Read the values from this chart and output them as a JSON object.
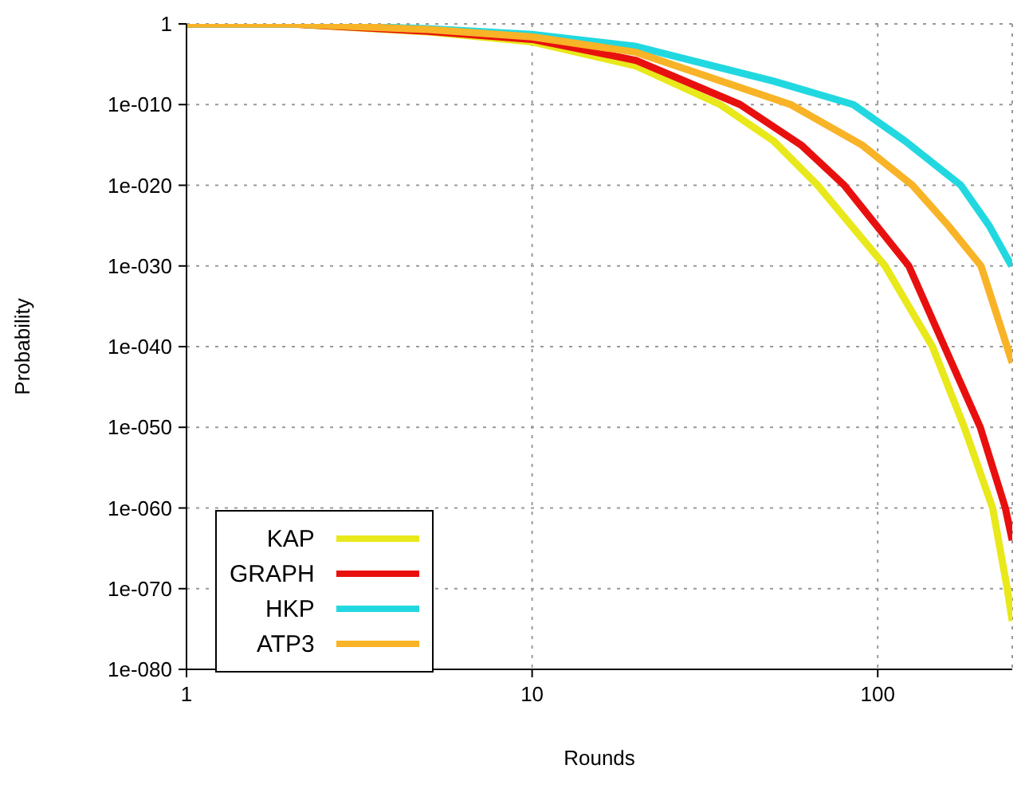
{
  "chart_data": {
    "type": "line",
    "xlabel": "Rounds",
    "ylabel": "Probability",
    "log": "xy",
    "grid": true,
    "legend": "bottom left",
    "line_style": "solid",
    "marker": "none",
    "xlim": [
      1,
      245
    ],
    "xticks": [
      1,
      10,
      100
    ],
    "ylim": [
      1e-80,
      1
    ],
    "yticks": [
      1,
      {
        "value": 1e-10,
        "label": "1e-010"
      },
      {
        "value": 1e-20,
        "label": "1e-020"
      },
      {
        "value": 1e-30,
        "label": "1e-030"
      },
      {
        "value": 1e-40,
        "label": "1e-040"
      },
      {
        "value": 1e-50,
        "label": "1e-050"
      },
      {
        "value": 1e-60,
        "label": "1e-060"
      },
      {
        "value": 1e-70,
        "label": "1e-070"
      },
      {
        "value": 1e-80,
        "label": "1e-080"
      }
    ],
    "series": [
      {
        "name": "KAP",
        "color": "#e8e81a",
        "x": [
          1,
          2,
          5,
          10,
          20,
          35,
          50,
          67,
          105,
          144,
          178,
          215,
          237,
          245
        ],
        "values": [
          1,
          1,
          0.1,
          0.006,
          6e-06,
          1e-10,
          3e-15,
          1e-20,
          1e-30,
          1e-40,
          1e-50,
          1e-60,
          1e-70,
          1e-74
        ]
      },
      {
        "name": "GRAPH",
        "color": "#e8100e",
        "x": [
          1,
          2,
          5,
          10,
          20,
          40,
          60,
          80,
          123,
          156,
          198,
          234,
          245
        ],
        "values": [
          1,
          1,
          0.12,
          0.012,
          3e-05,
          1e-10,
          1e-15,
          1e-20,
          1e-30,
          1e-40,
          1e-50,
          1e-60,
          1e-64
        ]
      },
      {
        "name": "HKP",
        "color": "#22d8e0",
        "x": [
          1,
          2,
          5,
          10,
          20,
          50,
          85,
          120,
          174,
          210,
          244
        ],
        "values": [
          1,
          1,
          0.25,
          0.05,
          0.0016,
          8e-08,
          1e-10,
          3e-15,
          1e-20,
          1e-25,
          1e-30
        ]
      },
      {
        "name": "ATP3",
        "color": "#f8b326",
        "x": [
          1,
          2,
          5,
          10,
          20,
          56,
          90,
          126,
          160,
          199,
          245
        ],
        "values": [
          1,
          1,
          0.2,
          0.025,
          0.0003,
          1e-10,
          1e-15,
          1e-20,
          1e-25,
          1e-30,
          1e-42
        ]
      }
    ]
  }
}
